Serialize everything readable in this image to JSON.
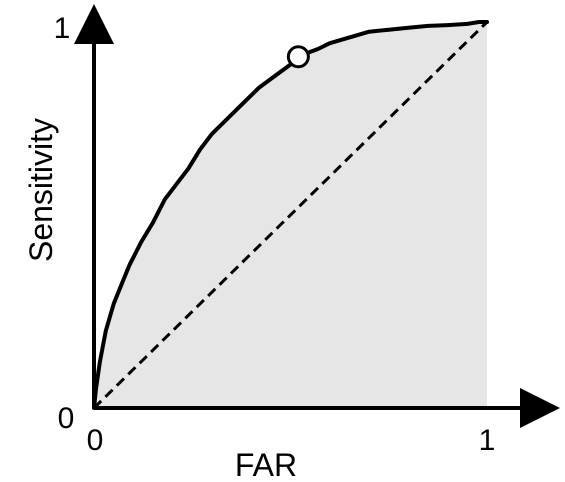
{
  "chart_data": {
    "type": "area",
    "xlabel": "FAR",
    "ylabel": "Sensitivity",
    "xlim": [
      0,
      1
    ],
    "ylim": [
      0,
      1
    ],
    "x_tick_labels": [
      "0",
      "1"
    ],
    "y_tick_labels": [
      "0",
      "1"
    ],
    "grid": false,
    "series": [
      {
        "x": [
          0,
          0.005,
          0.015,
          0.03,
          0.05,
          0.07,
          0.09,
          0.12,
          0.15,
          0.18,
          0.21,
          0.24,
          0.27,
          0.3,
          0.34,
          0.38,
          0.42,
          0.46,
          0.5,
          0.53,
          0.57,
          0.6,
          0.65,
          0.7,
          0.75,
          0.8,
          0.85,
          0.9,
          0.95,
          0.98,
          1
        ],
        "y": [
          0,
          0.05,
          0.12,
          0.2,
          0.27,
          0.32,
          0.37,
          0.43,
          0.48,
          0.54,
          0.58,
          0.62,
          0.67,
          0.71,
          0.75,
          0.79,
          0.83,
          0.86,
          0.89,
          0.915,
          0.93,
          0.945,
          0.96,
          0.975,
          0.98,
          0.985,
          0.99,
          0.992,
          0.995,
          1.0,
          1
        ]
      }
    ],
    "reference_line": {
      "x": [
        0,
        1
      ],
      "y": [
        0,
        1
      ],
      "style": "dashed"
    },
    "highlight_point": {
      "x": 0.52,
      "y": 0.91
    },
    "colors": {
      "curve": "#000000",
      "fill": "#e6e6e6",
      "point_fill": "#ffffff"
    }
  }
}
